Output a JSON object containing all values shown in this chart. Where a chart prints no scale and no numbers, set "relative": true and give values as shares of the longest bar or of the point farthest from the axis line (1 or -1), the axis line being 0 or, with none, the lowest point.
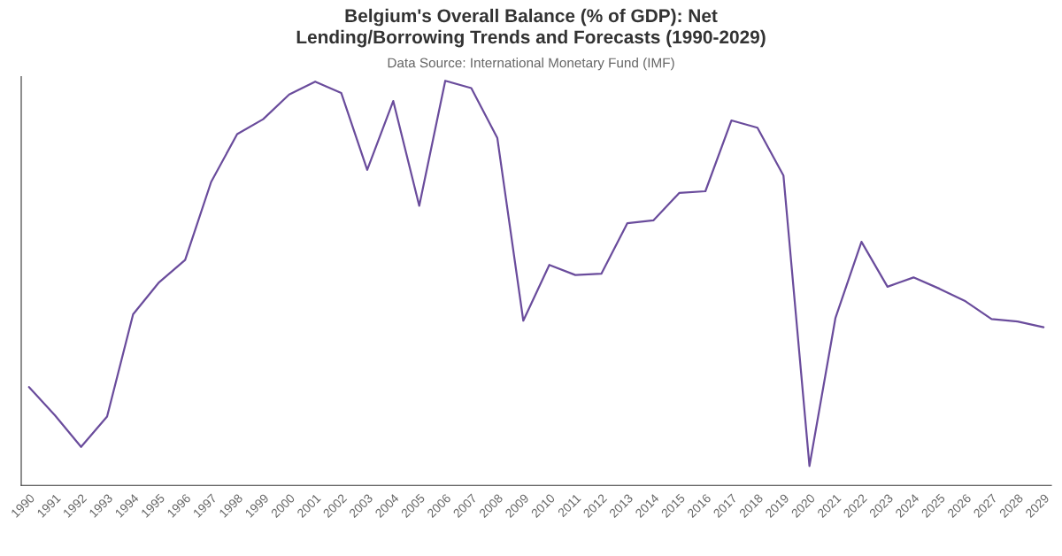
{
  "chart_data": {
    "type": "line",
    "title": "Belgium's Overall Balance (% of GDP): Net\nLending/Borrowing Trends and Forecasts (1990-2029)",
    "subtitle": "Data Source: International Monetary Fund (IMF)",
    "relative": true,
    "categories": [
      "1990",
      "1991",
      "1992",
      "1993",
      "1994",
      "1995",
      "1996",
      "1997",
      "1998",
      "1999",
      "2000",
      "2001",
      "2002",
      "2003",
      "2004",
      "2005",
      "2006",
      "2007",
      "2008",
      "2009",
      "2010",
      "2011",
      "2012",
      "2013",
      "2014",
      "2015",
      "2016",
      "2017",
      "2018",
      "2019",
      "2020",
      "2021",
      "2022",
      "2023",
      "2024",
      "2025",
      "2026",
      "2027",
      "2028",
      "2029"
    ],
    "series": [
      {
        "color": "#6a4c9c",
        "values": [
          0.243,
          0.173,
          0.095,
          0.17,
          0.423,
          0.502,
          0.557,
          0.75,
          0.868,
          0.905,
          0.966,
          0.998,
          0.97,
          0.78,
          0.95,
          0.691,
          1,
          0.982,
          0.859,
          0.407,
          0.545,
          0.52,
          0.523,
          0.648,
          0.655,
          0.723,
          0.727,
          0.902,
          0.884,
          0.766,
          0.048,
          0.414,
          0.602,
          0.491,
          0.514,
          0.486,
          0.455,
          0.411,
          0.405,
          0.391
        ]
      }
    ],
    "grid": false,
    "marker": "none",
    "line_style": "solid",
    "tick_labels": "x"
  }
}
